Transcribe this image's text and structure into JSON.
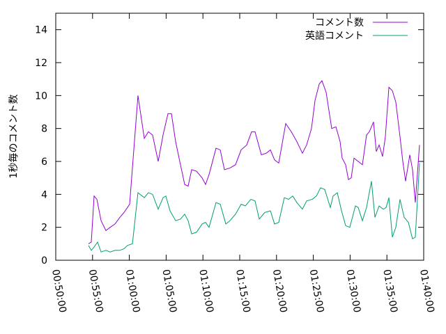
{
  "chart_data": {
    "type": "line",
    "ylabel": "1秒毎のコメント数",
    "xlim": [
      50,
      100
    ],
    "ylim": [
      0,
      15
    ],
    "yticks": [
      0,
      2,
      4,
      6,
      8,
      10,
      12,
      14
    ],
    "xticks": [
      {
        "value": 50,
        "label": "00:50:00"
      },
      {
        "value": 55,
        "label": "00:55:00"
      },
      {
        "value": 60,
        "label": "01:00:00"
      },
      {
        "value": 65,
        "label": "01:05:00"
      },
      {
        "value": 70,
        "label": "01:10:00"
      },
      {
        "value": 75,
        "label": "01:15:00"
      },
      {
        "value": 80,
        "label": "01:20:00"
      },
      {
        "value": 85,
        "label": "01:25:00"
      },
      {
        "value": 90,
        "label": "01:30:00"
      },
      {
        "value": 95,
        "label": "01:35:00"
      },
      {
        "value": 100,
        "label": "01:40:00"
      }
    ],
    "legend": "upper right",
    "series": [
      {
        "name": "コメント数",
        "color": "#9400d3",
        "x": [
          54.45,
          54.83,
          55.21,
          55.59,
          56.16,
          56.82,
          57.39,
          58.05,
          58.71,
          59.28,
          60.04,
          61.17,
          62.03,
          62.59,
          63.16,
          63.92,
          64.58,
          65.25,
          65.72,
          66.29,
          66.95,
          67.52,
          67.99,
          68.47,
          69.13,
          69.89,
          70.36,
          70.83,
          71.78,
          72.35,
          72.92,
          73.67,
          74.43,
          75.19,
          75.95,
          76.61,
          77.08,
          77.94,
          78.6,
          79.17,
          79.73,
          80.3,
          81.25,
          82.01,
          82.77,
          83.52,
          84.09,
          84.75,
          85.23,
          85.8,
          86.17,
          86.74,
          87.5,
          88.07,
          88.64,
          88.92,
          89.39,
          89.77,
          90.15,
          90.53,
          91.1,
          91.67,
          92.23,
          92.61,
          93.18,
          93.56,
          93.94,
          94.41,
          94.79,
          95.27,
          95.74,
          96.21,
          96.78,
          97.16,
          97.54,
          98.11,
          98.48,
          98.86,
          99.43
        ],
        "values": [
          1.0,
          1.1,
          3.9,
          3.7,
          2.4,
          1.8,
          2.0,
          2.2,
          2.6,
          2.9,
          3.4,
          10.0,
          7.4,
          7.8,
          7.6,
          6.0,
          7.6,
          8.9,
          8.9,
          7.2,
          5.8,
          4.6,
          4.5,
          5.5,
          5.4,
          5.0,
          4.6,
          5.2,
          6.8,
          6.7,
          5.5,
          5.6,
          5.8,
          6.7,
          7.0,
          7.8,
          7.8,
          6.4,
          6.5,
          6.7,
          6.1,
          5.9,
          8.3,
          7.8,
          7.2,
          6.5,
          7.0,
          8.0,
          9.7,
          10.7,
          10.9,
          10.2,
          8.0,
          8.1,
          7.2,
          6.2,
          5.8,
          4.9,
          5.0,
          6.2,
          6.0,
          5.8,
          7.6,
          7.8,
          8.4,
          6.6,
          7.0,
          6.3,
          7.5,
          10.5,
          10.3,
          9.6,
          7.5,
          6.0,
          4.8,
          6.4,
          5.5,
          3.5,
          7.0
        ]
      },
      {
        "name": "英語コメント",
        "color": "#009e73",
        "x": [
          54.45,
          54.83,
          55.21,
          55.68,
          56.16,
          56.82,
          57.39,
          58.05,
          58.71,
          59.28,
          59.75,
          60.42,
          61.17,
          62.03,
          62.59,
          63.16,
          63.92,
          64.58,
          64.96,
          65.53,
          66.29,
          66.95,
          67.52,
          67.99,
          68.47,
          69.13,
          69.89,
          70.36,
          70.83,
          71.78,
          72.35,
          73.11,
          73.67,
          74.43,
          75.19,
          75.76,
          76.52,
          77.08,
          77.65,
          78.41,
          79.17,
          79.73,
          80.3,
          81.06,
          81.63,
          82.2,
          82.77,
          83.52,
          84.09,
          84.85,
          85.42,
          85.98,
          86.55,
          87.31,
          87.69,
          88.26,
          88.83,
          89.39,
          89.96,
          90.72,
          91.1,
          91.67,
          92.23,
          92.9,
          93.37,
          93.94,
          94.51,
          94.89,
          95.27,
          95.74,
          96.21,
          96.78,
          97.35,
          97.92,
          98.48,
          98.86,
          99.43
        ],
        "values": [
          0.9,
          0.6,
          0.8,
          1.1,
          0.5,
          0.6,
          0.5,
          0.6,
          0.6,
          0.7,
          0.9,
          1.0,
          4.1,
          3.8,
          4.1,
          4.0,
          3.1,
          3.8,
          3.9,
          3.0,
          2.4,
          2.5,
          2.8,
          2.4,
          1.6,
          1.7,
          2.2,
          2.3,
          2.0,
          3.5,
          3.4,
          2.2,
          2.4,
          2.8,
          3.4,
          3.3,
          3.7,
          3.6,
          2.5,
          2.9,
          3.0,
          2.2,
          2.3,
          3.8,
          3.7,
          3.9,
          3.5,
          3.1,
          3.6,
          3.7,
          3.9,
          4.4,
          4.3,
          3.2,
          3.9,
          4.1,
          3.0,
          2.1,
          2.0,
          3.3,
          3.2,
          2.4,
          3.2,
          4.8,
          2.6,
          3.3,
          3.1,
          3.2,
          3.8,
          1.4,
          2.0,
          3.7,
          2.6,
          2.3,
          1.3,
          1.4,
          5.9
        ]
      }
    ]
  }
}
